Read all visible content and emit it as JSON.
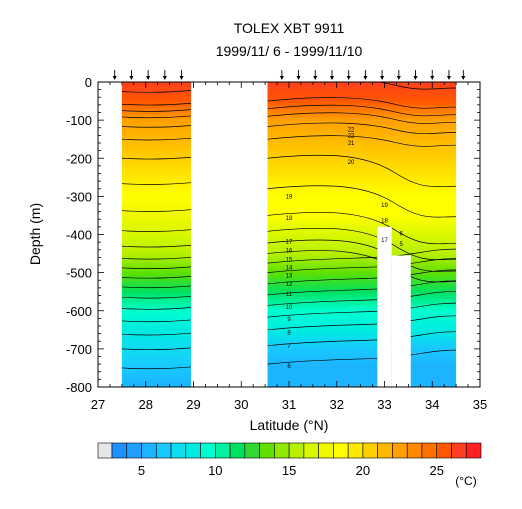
{
  "chart_data": {
    "type": "contour",
    "title": "TOLEX XBT 9911",
    "subtitle": "1999/11/ 6 - 1999/11/10",
    "xlabel": "Latitude (°N)",
    "ylabel": "Depth (m)",
    "xlim": [
      27,
      35
    ],
    "ylim": [
      -800,
      0
    ],
    "x_ticks": [
      "27",
      "28",
      "29",
      "30",
      "31",
      "32",
      "33",
      "34",
      "35"
    ],
    "y_ticks": [
      "0",
      "-100",
      "-200",
      "-300",
      "-400",
      "-500",
      "-600",
      "-700",
      "-800"
    ],
    "station_latitudes": [
      27.35,
      27.7,
      28.05,
      28.4,
      28.75,
      30.85,
      31.2,
      31.55,
      31.9,
      32.25,
      32.6,
      32.95,
      33.3,
      33.65,
      34.0,
      34.35,
      34.65
    ],
    "data_segments": [
      [
        27.5,
        28.95
      ],
      [
        30.55,
        34.5
      ]
    ],
    "missing_regions": [
      {
        "x": [
          32.85,
          33.15
        ],
        "depth": [
          -380,
          -800
        ]
      },
      {
        "x": [
          33.15,
          33.55
        ],
        "depth": [
          -455,
          -800
        ]
      }
    ],
    "contour_labels": [
      {
        "value": "22",
        "x": 32.3,
        "depth": -125
      },
      {
        "value": "22",
        "x": 32.3,
        "depth": -140
      },
      {
        "value": "21",
        "x": 32.3,
        "depth": -160
      },
      {
        "value": "20",
        "x": 32.3,
        "depth": -210
      },
      {
        "value": "19",
        "x": 31.0,
        "depth": -300
      },
      {
        "value": "19",
        "x": 33.0,
        "depth": -323
      },
      {
        "value": "18",
        "x": 31.0,
        "depth": -357
      },
      {
        "value": "18",
        "x": 33.0,
        "depth": -363
      },
      {
        "value": "17",
        "x": 31.0,
        "depth": -418
      },
      {
        "value": "17",
        "x": 33.0,
        "depth": -415
      },
      {
        "value": "16",
        "x": 31.0,
        "depth": -442
      },
      {
        "value": "15",
        "x": 31.0,
        "depth": -465
      },
      {
        "value": "14",
        "x": 31.0,
        "depth": -487
      },
      {
        "value": "13",
        "x": 31.0,
        "depth": -508
      },
      {
        "value": "12",
        "x": 31.0,
        "depth": -530
      },
      {
        "value": "11",
        "x": 31.0,
        "depth": -556
      },
      {
        "value": "10",
        "x": 31.0,
        "depth": -590
      },
      {
        "value": "9",
        "x": 31.0,
        "depth": -622
      },
      {
        "value": "8",
        "x": 31.0,
        "depth": -657
      },
      {
        "value": "7",
        "x": 31.0,
        "depth": -692
      },
      {
        "value": "6",
        "x": 31.0,
        "depth": -745
      },
      {
        "value": "6",
        "x": 33.35,
        "depth": -398
      },
      {
        "value": "5",
        "x": 33.35,
        "depth": -425
      }
    ],
    "colorbar": {
      "unit": "(°C)",
      "min": 3,
      "max": 28,
      "tick_labels": [
        "5",
        "10",
        "15",
        "20",
        "25"
      ],
      "tick_values": [
        5,
        10,
        15,
        20,
        25
      ],
      "missing_color": "#e6e6e6",
      "colors": [
        "#1e90ff",
        "#1fa0ff",
        "#1cb3ff",
        "#18c8ff",
        "#10dcf0",
        "#00ece0",
        "#00ffd0",
        "#00f0a0",
        "#00e060",
        "#30d830",
        "#60e000",
        "#90e800",
        "#b8f000",
        "#d8f800",
        "#f0f800",
        "#ffff00",
        "#ffe800",
        "#ffd000",
        "#ffb800",
        "#ffa000",
        "#ff8800",
        "#ff7000",
        "#ff5800",
        "#ff4020",
        "#ff2020"
      ]
    },
    "temperature_profile": {
      "depth": [
        0,
        -50,
        -100,
        -150,
        -200,
        -250,
        -300,
        -350,
        -400,
        -450,
        -500,
        -550,
        -600,
        -650,
        -700,
        -750,
        -800
      ],
      "at_lat_27_5": [
        26.5,
        25.5,
        22.5,
        21.0,
        20.0,
        19.2,
        18.6,
        17.8,
        16.8,
        15.5,
        13.5,
        11.5,
        9.8,
        8.3,
        7.0,
        6.0,
        5.2
      ],
      "at_lat_31_0": [
        26.0,
        25.0,
        22.5,
        21.0,
        20.0,
        19.3,
        18.8,
        18.0,
        16.8,
        15.0,
        13.0,
        11.3,
        9.5,
        8.0,
        6.8,
        5.8,
        5.0
      ]
    }
  }
}
